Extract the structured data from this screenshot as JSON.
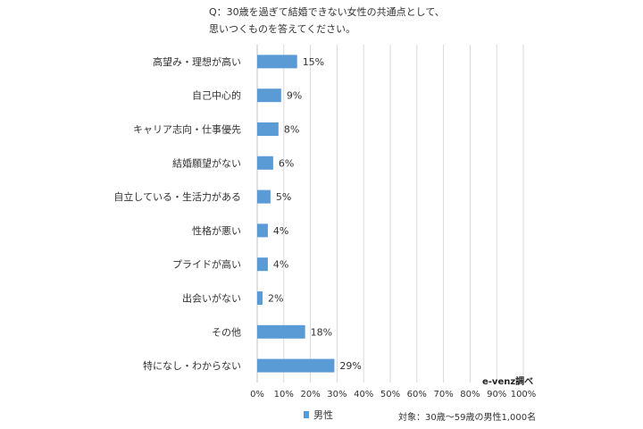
{
  "question": "Q：30歳を過ぎて結婚できない女性の共通点として、\n思いつくものを答えてください。",
  "source": "e-venz調べ",
  "sample": "対象：30歳～59歳の男性1,000名",
  "chart_data": {
    "type": "bar",
    "orientation": "horizontal",
    "title": "",
    "xlabel": "",
    "ylabel": "",
    "xlim": [
      0,
      100
    ],
    "tick_labels": [
      "0%",
      "10%",
      "20%",
      "30%",
      "40%",
      "50%",
      "60%",
      "70%",
      "80%",
      "90%",
      "100%"
    ],
    "grid": true,
    "legend_position": "bottom",
    "categories": [
      "高望み・理想が高い",
      "自己中心的",
      "キャリア志向・仕事優先",
      "結婚願望がない",
      "自立している・生活力がある",
      "性格が悪い",
      "プライドが高い",
      "出会いがない",
      "その他",
      "特になし・わからない"
    ],
    "series": [
      {
        "name": "男性",
        "color": "#5b9bd5",
        "values": [
          15,
          9,
          8,
          6,
          5,
          4,
          4,
          2,
          18,
          29
        ],
        "data_labels": [
          "15%",
          "9%",
          "8%",
          "6%",
          "5%",
          "4%",
          "4%",
          "2%",
          "18%",
          "29%"
        ]
      }
    ]
  }
}
